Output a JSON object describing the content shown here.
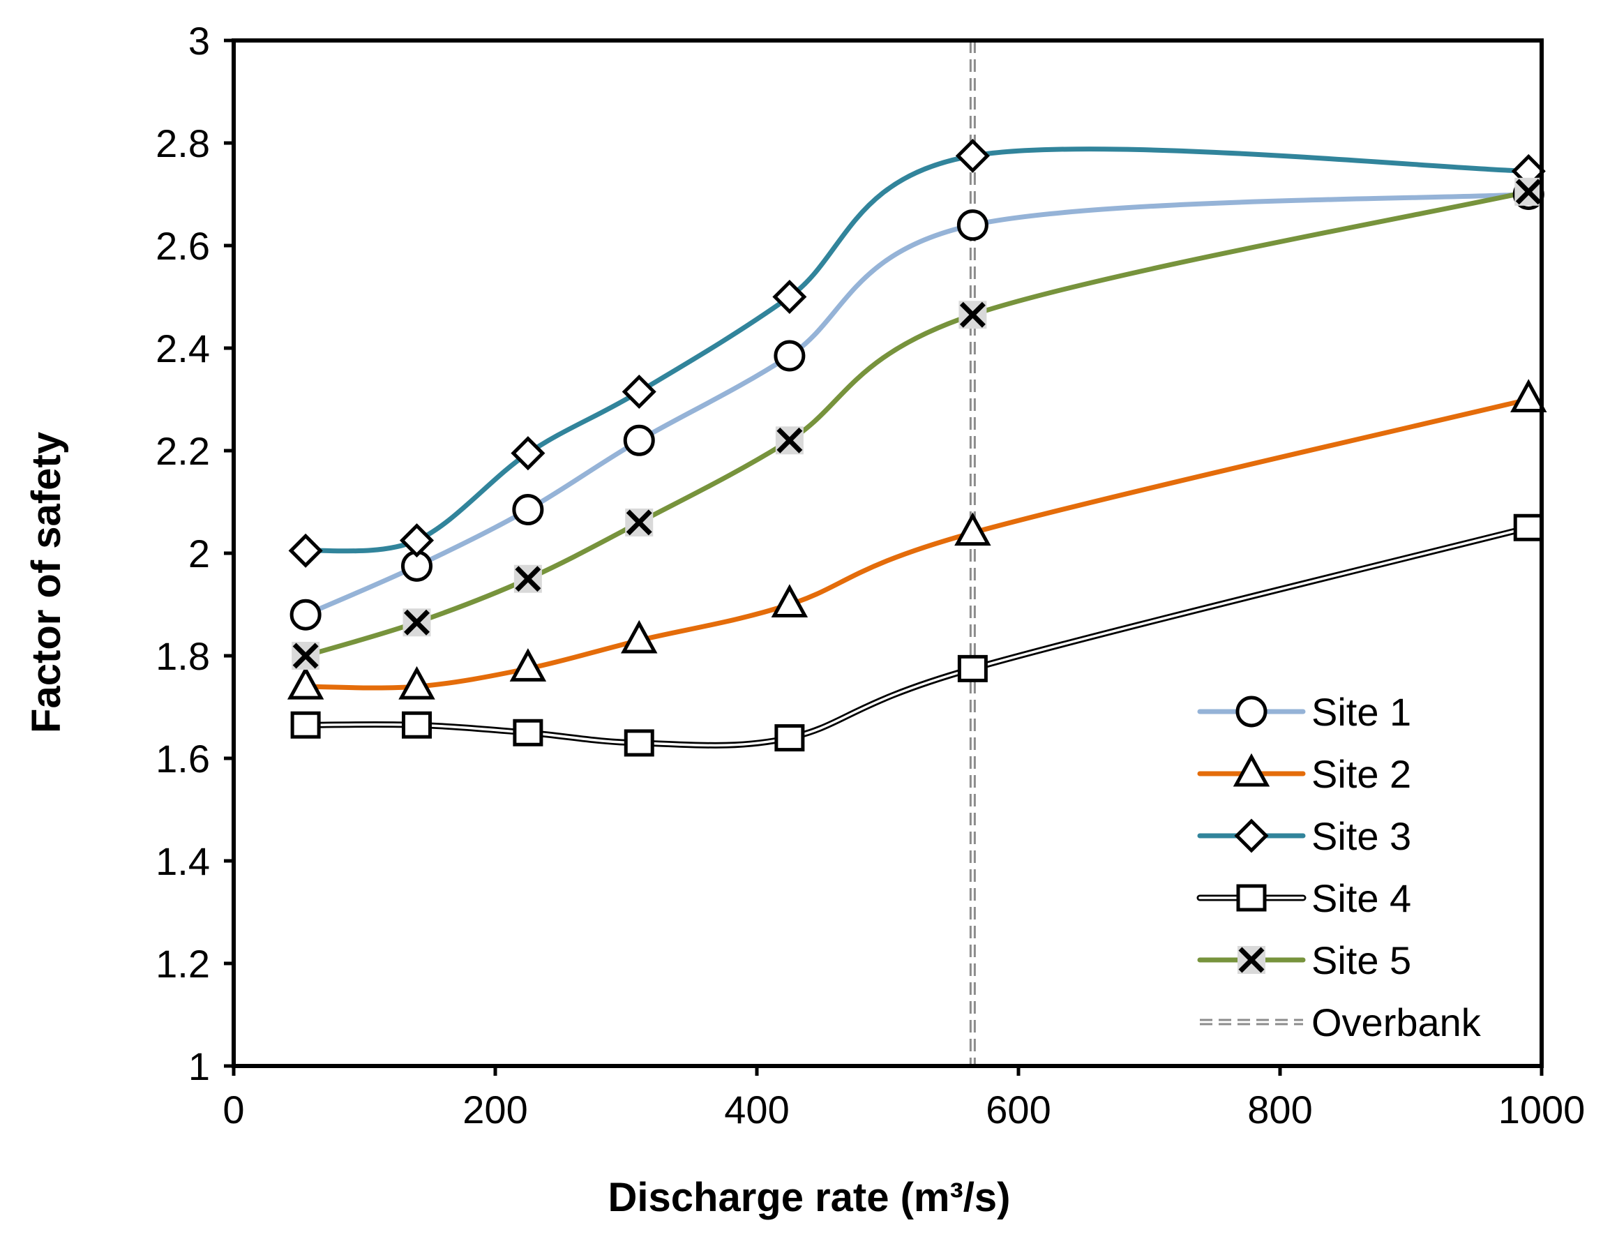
{
  "chart_data": {
    "type": "line",
    "title": "",
    "xlabel": "Discharge rate (m³/s)",
    "ylabel": "Factor of safety",
    "xlim": [
      0,
      1000
    ],
    "ylim": [
      1,
      3
    ],
    "xticks": [
      0,
      200,
      400,
      600,
      800,
      1000
    ],
    "yticks": [
      1,
      1.2,
      1.4,
      1.6,
      1.8,
      2,
      2.2,
      2.4,
      2.6,
      2.8,
      3
    ],
    "xtick_labels": [
      "0",
      "200",
      "400",
      "600",
      "800",
      "1000"
    ],
    "ytick_labels": [
      "1",
      "1.2",
      "1.4",
      "1.6",
      "1.8",
      "2",
      "2.2",
      "2.4",
      "2.6",
      "2.8",
      "3"
    ],
    "grid": false,
    "legend_position": "bottom-right",
    "x": [
      55,
      140,
      225,
      310,
      425,
      565,
      990
    ],
    "series": [
      {
        "name": "Site 1",
        "marker": "circle",
        "color": "#95b3d7",
        "values": [
          1.88,
          1.975,
          2.085,
          2.22,
          2.385,
          2.64,
          2.7
        ]
      },
      {
        "name": "Site 2",
        "marker": "triangle",
        "color": "#e46c0a",
        "values": [
          1.74,
          1.74,
          1.775,
          1.83,
          1.9,
          2.04,
          2.3
        ]
      },
      {
        "name": "Site 3",
        "marker": "diamond",
        "color": "#31849b",
        "values": [
          2.005,
          2.025,
          2.195,
          2.315,
          2.5,
          2.775,
          2.745
        ]
      },
      {
        "name": "Site 4",
        "marker": "square",
        "color": "#000000",
        "values": [
          1.665,
          1.665,
          1.65,
          1.63,
          1.64,
          1.775,
          2.05
        ]
      },
      {
        "name": "Site 5",
        "marker": "x",
        "color": "#77933c",
        "values": [
          1.8,
          1.865,
          1.95,
          2.06,
          2.22,
          2.465,
          2.705
        ]
      }
    ],
    "reference_line": {
      "name": "Overbank",
      "x": 565,
      "color": "#8c8c8c"
    }
  }
}
